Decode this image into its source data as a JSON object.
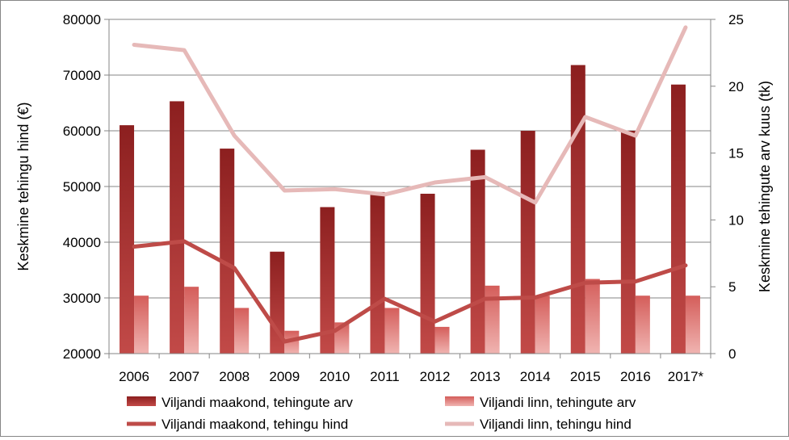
{
  "chart_data": {
    "type": "bar",
    "categories": [
      "2006",
      "2007",
      "2008",
      "2009",
      "2010",
      "2011",
      "2012",
      "2013",
      "2014",
      "2015",
      "2016",
      "2017*"
    ],
    "ylabel": "Keskmine tehingu hind (€)",
    "y2label": "Keskmine tehingute arv kuus (tk)",
    "ylim": [
      20000,
      80000
    ],
    "yticks": [
      20000,
      30000,
      40000,
      50000,
      60000,
      70000,
      80000
    ],
    "y2lim": [
      0,
      25
    ],
    "y2ticks": [
      0,
      5,
      10,
      15,
      20,
      25
    ],
    "grid": true,
    "legend_position": "bottom",
    "series": [
      {
        "name": "Viljandi maakond, tehingute arv",
        "type": "bar",
        "axis": "left",
        "color": "#9b2d2d",
        "values": [
          61000,
          65300,
          56800,
          38300,
          46300,
          49000,
          48700,
          56600,
          60000,
          71800,
          60000,
          68300
        ]
      },
      {
        "name": "Viljandi linn, tehingute arv",
        "type": "bar",
        "axis": "left",
        "color": "#dd6e6a",
        "values": [
          30400,
          32000,
          28200,
          24100,
          25600,
          28200,
          24800,
          32200,
          30400,
          33400,
          30400,
          30400
        ]
      },
      {
        "name": "Viljandi maakond, tehingu hind",
        "type": "line",
        "axis": "right",
        "color": "#be4b48",
        "values": [
          8.0,
          8.4,
          6.4,
          0.9,
          1.7,
          4.1,
          2.4,
          4.1,
          4.2,
          5.3,
          5.4,
          6.6
        ]
      },
      {
        "name": "Viljandi linn, tehingu hind",
        "type": "line",
        "axis": "right",
        "color": "#e6b9b8",
        "values": [
          23.1,
          22.7,
          16.3,
          12.2,
          12.3,
          11.9,
          12.8,
          13.2,
          11.3,
          17.7,
          16.3,
          24.4
        ]
      }
    ]
  }
}
